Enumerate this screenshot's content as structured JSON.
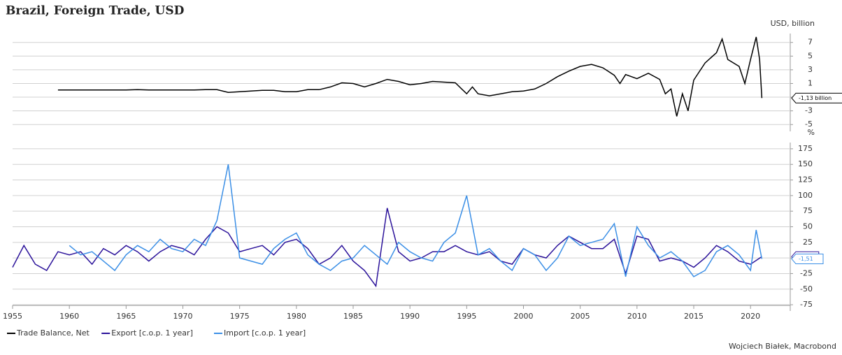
{
  "title": "Brazil, Foreign Trade, USD",
  "source": "Wojciech Białek, Macrobond",
  "chart_data": [
    {
      "type": "line",
      "y_label": "USD, billion",
      "ylim": [
        -6.0,
        8.3
      ],
      "yticks": [
        7,
        5,
        3,
        1,
        -1,
        -3,
        -5
      ],
      "xlim": [
        1955,
        2023.5
      ],
      "grid": true,
      "series": [
        {
          "name": "Trade Balance, Net",
          "color": "#000000",
          "x": [
            1959,
            1960,
            1961,
            1962,
            1963,
            1964,
            1965,
            1966,
            1967,
            1968,
            1969,
            1970,
            1971,
            1972,
            1973,
            1974,
            1975,
            1976,
            1977,
            1978,
            1979,
            1980,
            1981,
            1982,
            1983,
            1984,
            1985,
            1986,
            1987,
            1988,
            1989,
            1990,
            1991,
            1992,
            1993,
            1994,
            1995,
            1995.5,
            1996,
            1997,
            1998,
            1999,
            2000,
            2001,
            2002,
            2003,
            2004,
            2005,
            2006,
            2007,
            2008,
            2008.5,
            2009,
            2010,
            2011,
            2012,
            2012.5,
            2013,
            2013.5,
            2014,
            2014.5,
            2015,
            2016,
            2017,
            2017.5,
            2018,
            2019,
            2019.5,
            2020,
            2020.5,
            2020.8,
            2021
          ],
          "values": [
            0.05,
            0.05,
            0.05,
            0.05,
            0.05,
            0.05,
            0.05,
            0.1,
            0.05,
            0.05,
            0.05,
            0.05,
            0.05,
            0.1,
            0.1,
            -0.3,
            -0.2,
            -0.1,
            0.0,
            0.0,
            -0.2,
            -0.2,
            0.1,
            0.1,
            0.5,
            1.1,
            1.0,
            0.5,
            1.0,
            1.6,
            1.3,
            0.8,
            1.0,
            1.3,
            1.2,
            1.1,
            -0.5,
            0.5,
            -0.5,
            -0.8,
            -0.5,
            -0.2,
            -0.1,
            0.2,
            1.0,
            2.0,
            2.8,
            3.5,
            3.8,
            3.3,
            2.2,
            1.0,
            2.3,
            1.7,
            2.5,
            1.6,
            -0.5,
            0.2,
            -3.8,
            -0.5,
            -3.0,
            1.5,
            4.0,
            5.5,
            7.5,
            4.5,
            3.5,
            1.0,
            4.5,
            7.8,
            4.5,
            -1.13
          ],
          "value_labels": [
            "-1,13 billion"
          ]
        }
      ]
    },
    {
      "type": "line",
      "y_label": "%",
      "ylim": [
        -85,
        185
      ],
      "yticks": [
        175,
        150,
        125,
        100,
        75,
        50,
        25,
        0,
        -25,
        -50,
        -75
      ],
      "xlim": [
        1955,
        2023.5
      ],
      "grid": true,
      "xticks": [
        1955,
        1960,
        1965,
        1970,
        1975,
        1980,
        1985,
        1990,
        1995,
        2000,
        2005,
        2010,
        2015,
        2020
      ],
      "series": [
        {
          "name": "Export [c.o.p. 1 year]",
          "color": "#2b129a",
          "x": [
            1955,
            1956,
            1957,
            1958,
            1959,
            1960,
            1961,
            1962,
            1963,
            1964,
            1965,
            1966,
            1967,
            1968,
            1969,
            1970,
            1971,
            1972,
            1973,
            1974,
            1975,
            1976,
            1977,
            1978,
            1979,
            1980,
            1981,
            1982,
            1983,
            1984,
            1985,
            1986,
            1987,
            1988,
            1989,
            1990,
            1991,
            1992,
            1993,
            1994,
            1995,
            1996,
            1997,
            1998,
            1999,
            2000,
            2001,
            2002,
            2003,
            2004,
            2005,
            2006,
            2007,
            2008,
            2009,
            2010,
            2011,
            2012,
            2013,
            2014,
            2015,
            2016,
            2017,
            2018,
            2019,
            2020,
            2021
          ],
          "values": [
            -15,
            20,
            -10,
            -20,
            10,
            5,
            10,
            -10,
            15,
            5,
            20,
            10,
            -5,
            10,
            20,
            15,
            5,
            30,
            50,
            40,
            10,
            15,
            20,
            5,
            25,
            30,
            15,
            -10,
            0,
            20,
            -5,
            -20,
            -45,
            80,
            10,
            -5,
            0,
            10,
            10,
            20,
            10,
            5,
            10,
            -5,
            -10,
            15,
            5,
            0,
            20,
            35,
            25,
            15,
            15,
            30,
            -25,
            35,
            30,
            -5,
            0,
            -5,
            -15,
            0,
            20,
            10,
            -5,
            -10,
            2.16
          ],
          "value_labels": [
            "2,16"
          ]
        },
        {
          "name": "Import [c.o.p. 1 year]",
          "color": "#3b8fe6",
          "x": [
            1960,
            1961,
            1962,
            1963,
            1964,
            1965,
            1966,
            1967,
            1968,
            1969,
            1970,
            1971,
            1972,
            1973,
            1974,
            1975,
            1976,
            1977,
            1978,
            1979,
            1980,
            1981,
            1982,
            1983,
            1984,
            1985,
            1986,
            1987,
            1988,
            1989,
            1990,
            1991,
            1992,
            1993,
            1994,
            1995,
            1996,
            1997,
            1998,
            1999,
            2000,
            2001,
            2002,
            2003,
            2004,
            2005,
            2006,
            2007,
            2008,
            2009,
            2010,
            2011,
            2012,
            2013,
            2014,
            2015,
            2016,
            2017,
            2018,
            2019,
            2020,
            2020.5,
            2021
          ],
          "values": [
            20,
            5,
            10,
            -5,
            -20,
            5,
            20,
            10,
            30,
            15,
            10,
            30,
            20,
            60,
            150,
            0,
            -5,
            -10,
            15,
            30,
            40,
            5,
            -10,
            -20,
            -5,
            0,
            20,
            5,
            -10,
            25,
            10,
            0,
            -5,
            25,
            40,
            100,
            5,
            15,
            -5,
            -20,
            15,
            5,
            -20,
            0,
            35,
            20,
            25,
            30,
            55,
            -30,
            50,
            20,
            0,
            10,
            -5,
            -30,
            -20,
            10,
            20,
            5,
            -20,
            45,
            -1.51
          ],
          "value_labels": [
            "-1,51"
          ]
        }
      ]
    }
  ]
}
